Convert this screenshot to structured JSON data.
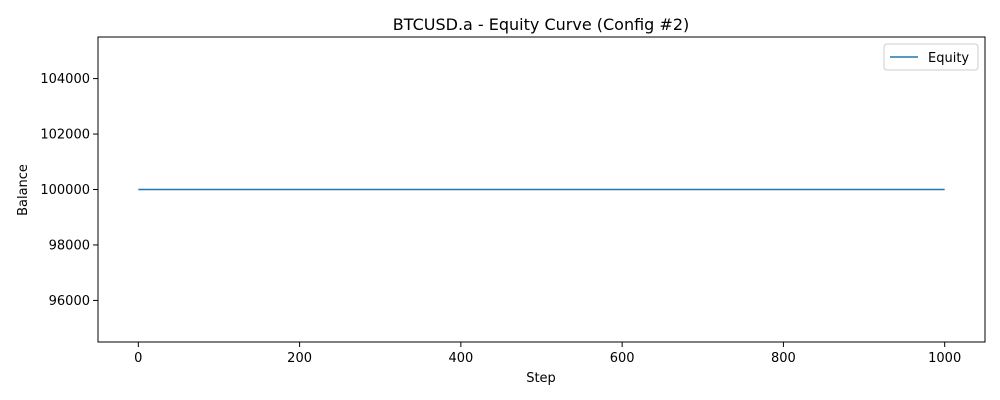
{
  "chart_data": {
    "type": "line",
    "title": "BTCUSD.a - Equity Curve (Config #2)",
    "xlabel": "Step",
    "ylabel": "Balance",
    "xlim": [
      -50,
      1050
    ],
    "ylim": [
      94500,
      105500
    ],
    "xticks": [
      0,
      200,
      400,
      600,
      800,
      1000
    ],
    "xtick_labels": [
      "0",
      "200",
      "400",
      "600",
      "800",
      "1000"
    ],
    "yticks": [
      96000,
      98000,
      100000,
      102000,
      104000
    ],
    "ytick_labels": [
      "96000",
      "98000",
      "100000",
      "102000",
      "104000"
    ],
    "grid": false,
    "legend_position": "top-right",
    "series": [
      {
        "name": "Equity",
        "color": "#1f77b4",
        "x": [
          0,
          1000
        ],
        "y": [
          100000,
          100000
        ]
      }
    ]
  }
}
